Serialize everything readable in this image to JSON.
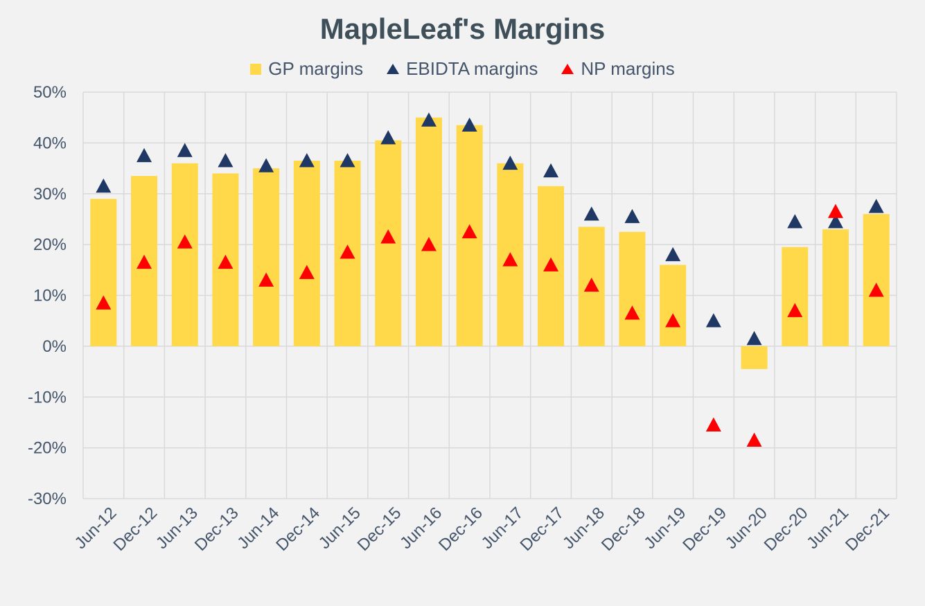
{
  "chart_data": {
    "type": "bar",
    "title": "MapleLeaf's Margins",
    "categories": [
      "Jun-12",
      "Dec-12",
      "Jun-13",
      "Dec-13",
      "Jun-14",
      "Dec-14",
      "Jun-15",
      "Dec-15",
      "Jun-16",
      "Dec-16",
      "Jun-17",
      "Dec-17",
      "Jun-18",
      "Dec-18",
      "Jun-19",
      "Dec-19",
      "Jun-20",
      "Dec-20",
      "Jun-21",
      "Dec-21"
    ],
    "ylim": [
      -30,
      50
    ],
    "yticks": [
      50,
      40,
      30,
      20,
      10,
      0,
      -10,
      -20,
      -30
    ],
    "ytick_labels": [
      "50%",
      "40%",
      "30%",
      "20%",
      "10%",
      "0%",
      "-10%",
      "-20%",
      "-30%"
    ],
    "grid": true,
    "legend_position": "top",
    "series": [
      {
        "name": "GP margins",
        "type": "bar",
        "color": "#ffd94a",
        "values": [
          29,
          33.5,
          36,
          34,
          35,
          36.5,
          36.5,
          40.5,
          45,
          43.5,
          36,
          31.5,
          23.5,
          22.5,
          16,
          null,
          -4.5,
          19.5,
          23,
          26
        ]
      },
      {
        "name": "EBIDTA margins",
        "type": "scatter",
        "marker": "triangle",
        "color": "#1f3864",
        "values": [
          31.5,
          37.5,
          38.5,
          36.5,
          35.5,
          36.5,
          36.5,
          41,
          44.5,
          43.5,
          36,
          34.5,
          26,
          25.5,
          18,
          5,
          1.5,
          24.5,
          24.5,
          27.5
        ]
      },
      {
        "name": "NP margins",
        "type": "scatter",
        "marker": "triangle",
        "color": "#ff0000",
        "values": [
          8.5,
          16.5,
          20.5,
          16.5,
          13,
          14.5,
          18.5,
          21.5,
          20,
          22.5,
          17,
          16,
          12,
          6.5,
          5,
          -15.5,
          -18.5,
          7,
          26.5,
          11
        ]
      }
    ]
  }
}
